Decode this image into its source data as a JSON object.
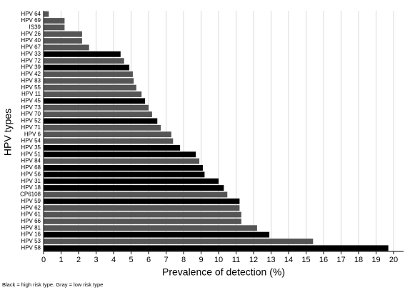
{
  "chart_data": {
    "type": "hbar",
    "y_label": "HPV types",
    "x_label": "Prevalence of detection (%)",
    "note": "Black = high risk type. Gray = low risk type",
    "categories": [
      "HPV 64",
      "HPV 69",
      "IS39",
      "HPV 26",
      "HPV 40",
      "HPV 67",
      "HPV 33",
      "HPV 72",
      "HPV 39",
      "HPV 42",
      "HPV 83",
      "HPV 55",
      "HPV 11",
      "HPV 45",
      "HPV 73",
      "HPV 70",
      "HPV 52",
      "HPV 71",
      "HPV 6",
      "HPV 54",
      "HPV 35",
      "HPV 51",
      "HPV 84",
      "HPV 68",
      "HPV 56",
      "HPV 31",
      "HPV 18",
      "CP6108",
      "HPV 59",
      "HPV 62",
      "HPV 61",
      "HPV 66",
      "HPV 81",
      "HPV 16",
      "HPV 53",
      "HPV 58"
    ],
    "values": [
      0.3,
      1.2,
      1.2,
      2.2,
      2.2,
      2.6,
      4.4,
      4.6,
      4.9,
      5.1,
      5.15,
      5.3,
      5.6,
      5.8,
      6.0,
      6.2,
      6.5,
      6.7,
      7.3,
      7.4,
      7.8,
      8.7,
      8.9,
      9.1,
      9.2,
      10.0,
      10.3,
      10.5,
      11.2,
      11.2,
      11.3,
      11.3,
      12.2,
      12.9,
      15.4,
      19.7
    ],
    "colors": [
      "#555",
      "#555",
      "#555",
      "#555",
      "#555",
      "#555",
      "#000",
      "#555",
      "#000",
      "#555",
      "#555",
      "#555",
      "#555",
      "#000",
      "#555",
      "#555",
      "#000",
      "#555",
      "#555",
      "#555",
      "#000",
      "#000",
      "#555",
      "#000",
      "#000",
      "#000",
      "#000",
      "#555",
      "#000",
      "#555",
      "#555",
      "#555",
      "#555",
      "#000",
      "#555",
      "#000"
    ],
    "xlim": [
      0,
      20
    ],
    "xticks": [
      0,
      1,
      2,
      3,
      4,
      5,
      6,
      7,
      8,
      9,
      10,
      11,
      12,
      13,
      14,
      15,
      16,
      17,
      18,
      19,
      20
    ],
    "grid": true
  }
}
